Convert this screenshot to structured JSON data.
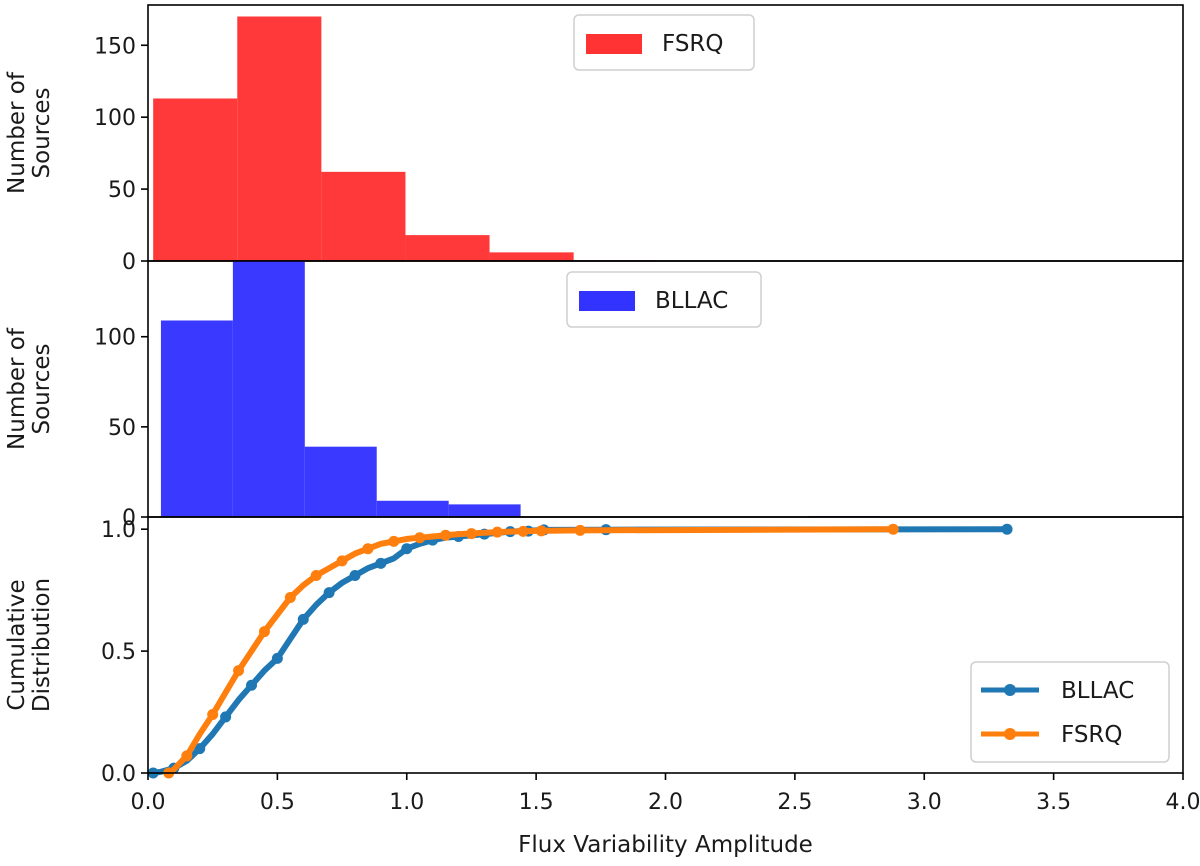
{
  "chart_data": [
    {
      "id": "fsrq-hist",
      "type": "bar",
      "series_name": "FSRQ",
      "color": "#ff3333",
      "bin_edges": [
        0.02,
        0.345,
        0.67,
        0.995,
        1.32,
        1.645,
        1.97,
        2.295,
        2.62,
        2.945,
        3.27
      ],
      "values": [
        113,
        170,
        62,
        18,
        6,
        0.5,
        0,
        0,
        0.3,
        0
      ],
      "ylabel": [
        "Number of",
        "Sources"
      ],
      "ylim": [
        0,
        178
      ],
      "yticks": [
        0,
        50,
        100,
        150
      ],
      "ytick_labels": [
        "0",
        "50",
        "100",
        "150"
      ],
      "legend": "FSRQ",
      "legend_position": "top-center"
    },
    {
      "id": "bllac-hist",
      "type": "bar",
      "series_name": "BLLAC",
      "color": "#3333ff",
      "bin_edges": [
        0.05,
        0.328,
        0.606,
        0.884,
        1.162,
        1.44,
        1.718,
        1.996,
        2.274,
        2.552,
        2.83
      ],
      "values": [
        109,
        142,
        39,
        9,
        7,
        0,
        0,
        0,
        0,
        0.5
      ],
      "ylabel": [
        "Number of",
        "Sources"
      ],
      "ylim": [
        0,
        142
      ],
      "yticks": [
        0,
        50,
        100
      ],
      "ytick_labels": [
        "0",
        "50",
        "100"
      ],
      "legend": "BLLAC",
      "legend_position": "top-center"
    },
    {
      "id": "cdf",
      "type": "line",
      "xlabel": "Flux Variability Amplitude",
      "ylabel": [
        "Cumulative",
        "Distribution"
      ],
      "xlim": [
        0,
        4
      ],
      "ylim": [
        0,
        1.05
      ],
      "xticks": [
        0,
        0.5,
        1,
        1.5,
        2,
        2.5,
        3,
        3.5,
        4
      ],
      "xtick_labels": [
        "0.0",
        "0.5",
        "1.0",
        "1.5",
        "2.0",
        "2.5",
        "3.0",
        "3.5",
        "4.0"
      ],
      "yticks": [
        0,
        0.5,
        1
      ],
      "ytick_labels": [
        "0.0",
        "0.5",
        "1.0"
      ],
      "legend_position": "lower-right",
      "series": [
        {
          "name": "BLLAC",
          "color": "#1f77b4",
          "points": [
            [
              0.02,
              0.0
            ],
            [
              0.05,
              0.005
            ],
            [
              0.1,
              0.02
            ],
            [
              0.15,
              0.05
            ],
            [
              0.2,
              0.1
            ],
            [
              0.25,
              0.16
            ],
            [
              0.3,
              0.23
            ],
            [
              0.35,
              0.3
            ],
            [
              0.4,
              0.36
            ],
            [
              0.45,
              0.42
            ],
            [
              0.5,
              0.47
            ],
            [
              0.55,
              0.55
            ],
            [
              0.6,
              0.63
            ],
            [
              0.65,
              0.69
            ],
            [
              0.7,
              0.74
            ],
            [
              0.75,
              0.78
            ],
            [
              0.8,
              0.81
            ],
            [
              0.85,
              0.84
            ],
            [
              0.9,
              0.86
            ],
            [
              0.95,
              0.88
            ],
            [
              1.0,
              0.92
            ],
            [
              1.05,
              0.94
            ],
            [
              1.1,
              0.955
            ],
            [
              1.15,
              0.965
            ],
            [
              1.2,
              0.97
            ],
            [
              1.3,
              0.98
            ],
            [
              1.4,
              0.99
            ],
            [
              1.5,
              0.995
            ],
            [
              1.53,
              0.997
            ],
            [
              1.77,
              0.998
            ],
            [
              3.32,
              1.0
            ]
          ],
          "markers": [
            [
              0.02,
              0.0
            ],
            [
              0.1,
              0.02
            ],
            [
              0.2,
              0.1
            ],
            [
              0.3,
              0.23
            ],
            [
              0.4,
              0.36
            ],
            [
              0.5,
              0.47
            ],
            [
              0.6,
              0.63
            ],
            [
              0.7,
              0.74
            ],
            [
              0.8,
              0.81
            ],
            [
              0.9,
              0.86
            ],
            [
              1.0,
              0.92
            ],
            [
              1.1,
              0.955
            ],
            [
              1.2,
              0.97
            ],
            [
              1.3,
              0.98
            ],
            [
              1.4,
              0.99
            ],
            [
              1.47,
              0.992
            ],
            [
              1.53,
              0.997
            ],
            [
              1.77,
              0.998
            ],
            [
              3.32,
              1.0
            ]
          ]
        },
        {
          "name": "FSRQ",
          "color": "#ff7f0e",
          "points": [
            [
              0.08,
              0.0
            ],
            [
              0.1,
              0.015
            ],
            [
              0.15,
              0.07
            ],
            [
              0.2,
              0.16
            ],
            [
              0.25,
              0.24
            ],
            [
              0.3,
              0.33
            ],
            [
              0.35,
              0.42
            ],
            [
              0.4,
              0.5
            ],
            [
              0.45,
              0.58
            ],
            [
              0.5,
              0.65
            ],
            [
              0.55,
              0.72
            ],
            [
              0.6,
              0.77
            ],
            [
              0.65,
              0.81
            ],
            [
              0.7,
              0.84
            ],
            [
              0.75,
              0.87
            ],
            [
              0.8,
              0.9
            ],
            [
              0.85,
              0.92
            ],
            [
              0.9,
              0.94
            ],
            [
              0.95,
              0.95
            ],
            [
              1.0,
              0.96
            ],
            [
              1.05,
              0.965
            ],
            [
              1.1,
              0.97
            ],
            [
              1.2,
              0.98
            ],
            [
              1.3,
              0.985
            ],
            [
              1.4,
              0.99
            ],
            [
              1.5,
              0.993
            ],
            [
              1.67,
              0.995
            ],
            [
              2.88,
              1.0
            ]
          ],
          "markers": [
            [
              0.08,
              0.0
            ],
            [
              0.15,
              0.07
            ],
            [
              0.25,
              0.24
            ],
            [
              0.35,
              0.42
            ],
            [
              0.45,
              0.58
            ],
            [
              0.55,
              0.72
            ],
            [
              0.65,
              0.81
            ],
            [
              0.75,
              0.87
            ],
            [
              0.85,
              0.92
            ],
            [
              0.95,
              0.95
            ],
            [
              1.05,
              0.965
            ],
            [
              1.15,
              0.975
            ],
            [
              1.25,
              0.982
            ],
            [
              1.35,
              0.988
            ],
            [
              1.45,
              0.991
            ],
            [
              1.52,
              0.993
            ],
            [
              1.67,
              0.995
            ],
            [
              2.88,
              1.0
            ]
          ]
        }
      ]
    }
  ]
}
